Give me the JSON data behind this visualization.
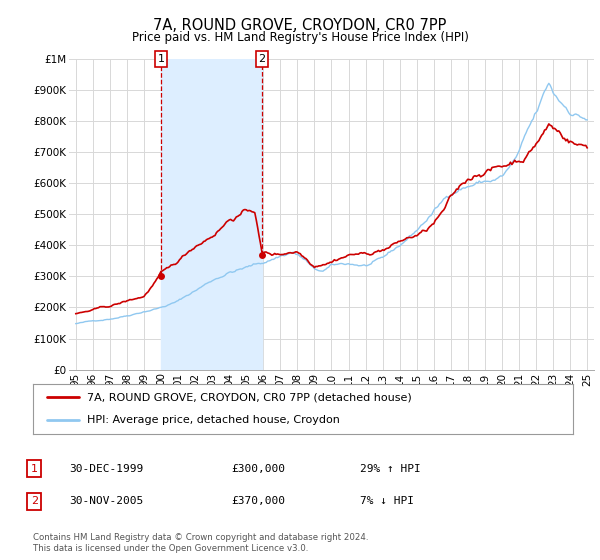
{
  "title": "7A, ROUND GROVE, CROYDON, CR0 7PP",
  "subtitle": "Price paid vs. HM Land Registry's House Price Index (HPI)",
  "title_fontsize": 10.5,
  "subtitle_fontsize": 8.5,
  "ylabel_ticks": [
    "£0",
    "£100K",
    "£200K",
    "£300K",
    "£400K",
    "£500K",
    "£600K",
    "£700K",
    "£800K",
    "£900K",
    "£1M"
  ],
  "ylim": [
    0,
    1000000
  ],
  "yticks": [
    0,
    100000,
    200000,
    300000,
    400000,
    500000,
    600000,
    700000,
    800000,
    900000,
    1000000
  ],
  "xlim_start": 1994.6,
  "xlim_end": 2025.4,
  "background_color": "#ffffff",
  "plot_bg_color": "#ffffff",
  "grid_color": "#d8d8d8",
  "red_line_color": "#cc0000",
  "blue_line_color": "#90c8f0",
  "shade_color": "#ddeeff",
  "sale1_year": 2000.0,
  "sale1_price": 300000,
  "sale2_year": 2005.92,
  "sale2_price": 370000,
  "legend_label_red": "7A, ROUND GROVE, CROYDON, CR0 7PP (detached house)",
  "legend_label_blue": "HPI: Average price, detached house, Croydon",
  "table_rows": [
    {
      "num": "1",
      "date": "30-DEC-1999",
      "price": "£300,000",
      "hpi": "29% ↑ HPI"
    },
    {
      "num": "2",
      "date": "30-NOV-2005",
      "price": "£370,000",
      "hpi": "7% ↓ HPI"
    }
  ],
  "footnote": "Contains HM Land Registry data © Crown copyright and database right 2024.\nThis data is licensed under the Open Government Licence v3.0.",
  "xtick_years": [
    1995,
    1996,
    1997,
    1998,
    1999,
    2000,
    2001,
    2002,
    2003,
    2004,
    2005,
    2006,
    2007,
    2008,
    2009,
    2010,
    2011,
    2012,
    2013,
    2014,
    2015,
    2016,
    2017,
    2018,
    2019,
    2020,
    2021,
    2022,
    2023,
    2024,
    2025
  ]
}
